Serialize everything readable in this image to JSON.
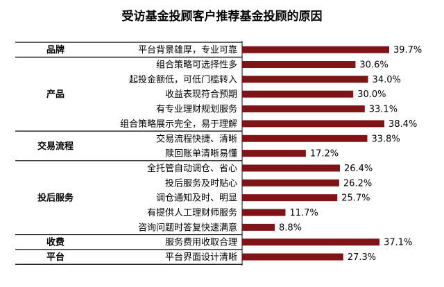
{
  "chart_data": {
    "type": "bar",
    "orientation": "horizontal",
    "title": "受访基金投顾客户推荐基金投顾的原因",
    "xlabel": "",
    "ylabel": "",
    "xlim": [
      0,
      45
    ],
    "grid": false,
    "legend": "none",
    "bar_color": "#7f1416",
    "groups": [
      {
        "name": "品牌",
        "start": 0,
        "end": 0
      },
      {
        "name": "产品",
        "start": 1,
        "end": 5
      },
      {
        "name": "交易流程",
        "start": 6,
        "end": 7
      },
      {
        "name": "投后服务",
        "start": 8,
        "end": 12
      },
      {
        "name": "收费",
        "start": 13,
        "end": 13
      },
      {
        "name": "平台",
        "start": 14,
        "end": 14
      }
    ],
    "categories": [
      "平台背景雄厚，专业可靠",
      "组合策略可选择性多",
      "起投金额低，可低门槛转入",
      "收益表现符合预期",
      "有专业理财规划服务",
      "组合策略展示完全，易于理解",
      "交易流程快捷、清晰",
      "赎回账单清晰易懂",
      "全托管自动调仓、省心",
      "投后服务及时贴心",
      "调仓通知及时、明显",
      "有提供人工理财师服务",
      "咨询问题时答复快速满意",
      "服务费用收取合理",
      "平台界面设计清晰"
    ],
    "values": [
      39.7,
      30.6,
      34.0,
      30.0,
      33.1,
      38.4,
      33.8,
      17.2,
      26.4,
      26.2,
      25.7,
      11.7,
      8.8,
      37.1,
      27.3
    ],
    "value_labels": [
      "39.7%",
      "30.6%",
      "34.0%",
      "30.0%",
      "33.1%",
      "38.4%",
      "33.8%",
      "17.2%",
      "26.4%",
      "26.2%",
      "25.7%",
      "11.7%",
      "8.8%",
      "37.1%",
      "27.3%"
    ]
  }
}
